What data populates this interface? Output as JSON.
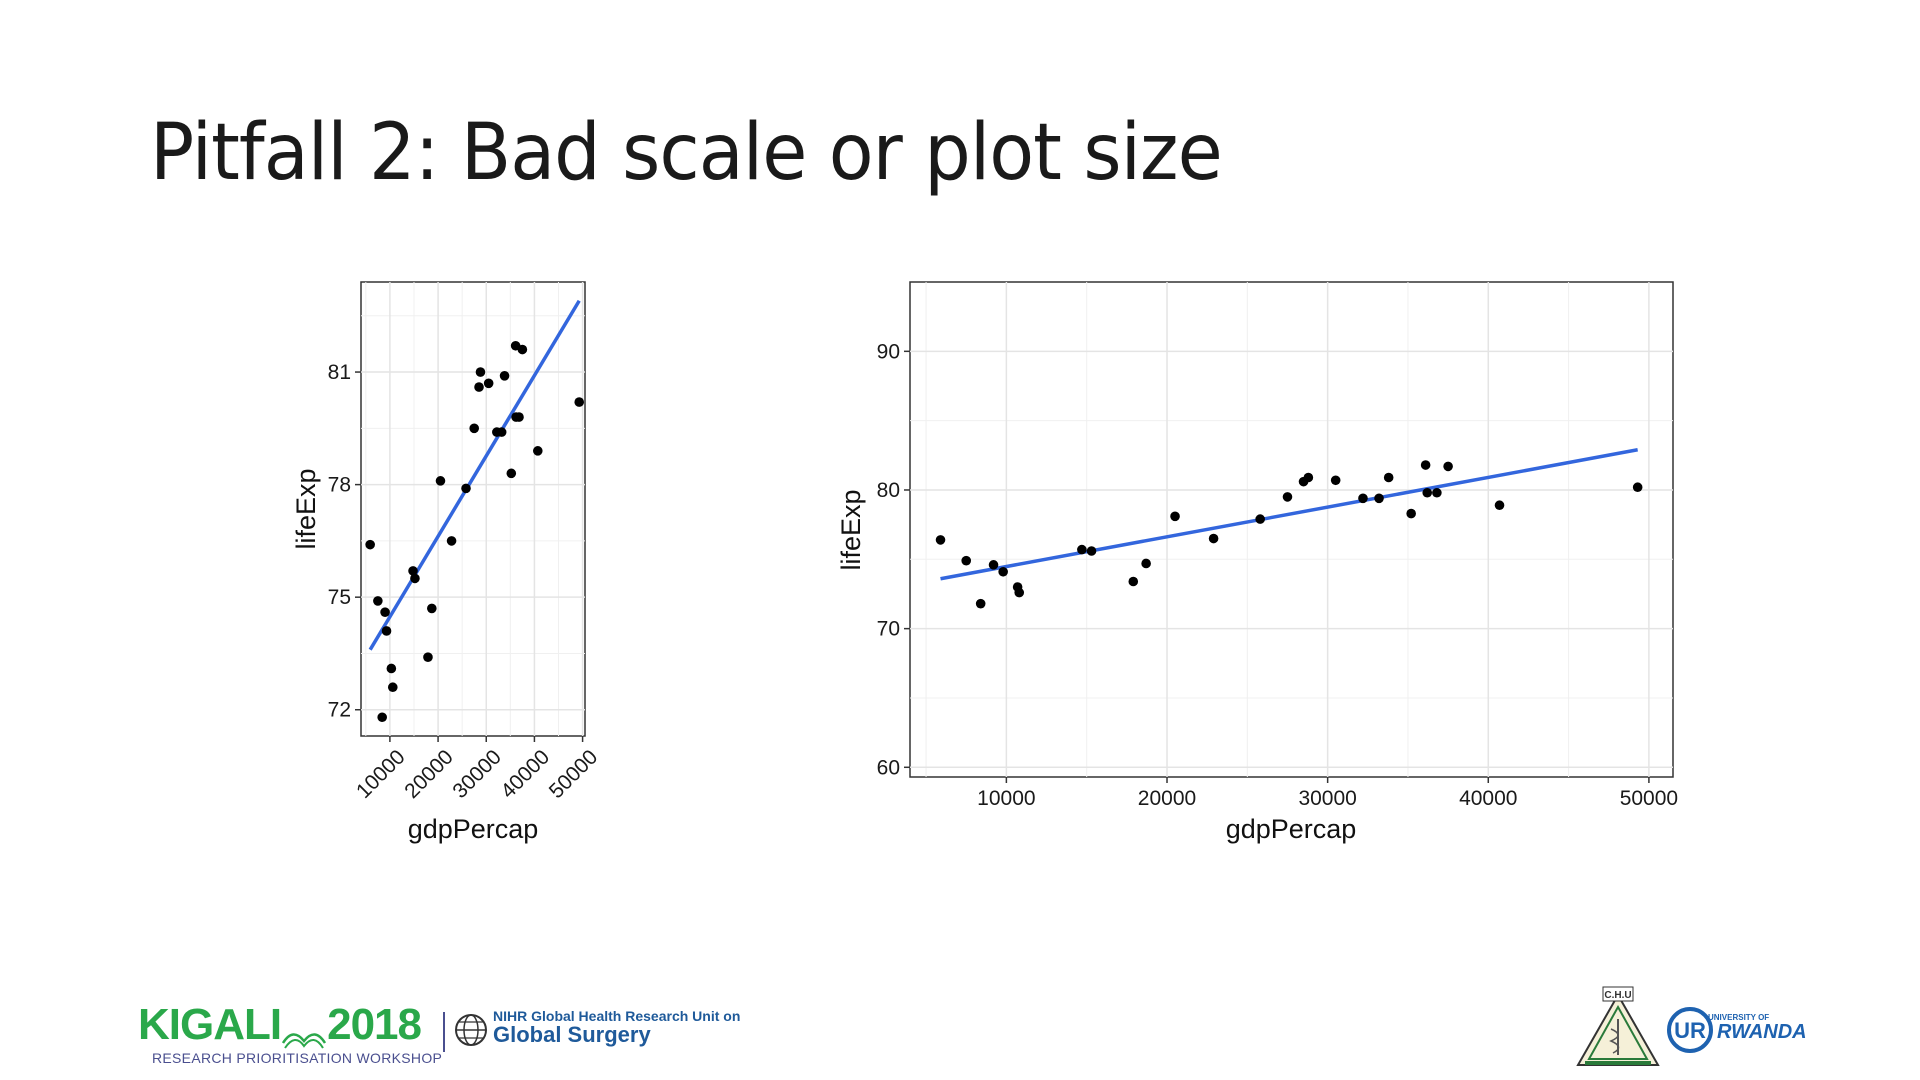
{
  "slide": {
    "title": "Pitfall 2: Bad scale or plot size"
  },
  "chart_data": [
    {
      "type": "scatter",
      "title": "",
      "xlabel": "gdpPercap",
      "ylabel": "lifeExp",
      "xlim": [
        4000,
        50500
      ],
      "ylim": [
        71.3,
        83.4
      ],
      "xticks": [
        10000,
        20000,
        30000,
        40000,
        50000
      ],
      "yticks": [
        72,
        75,
        78,
        81
      ],
      "xtick_rotation": 45,
      "grid": true,
      "legend": "none",
      "points": [
        [
          5900,
          76.4
        ],
        [
          7500,
          74.9
        ],
        [
          8400,
          71.8
        ],
        [
          9000,
          74.6
        ],
        [
          9300,
          74.1
        ],
        [
          10300,
          73.1
        ],
        [
          10600,
          72.6
        ],
        [
          14800,
          75.7
        ],
        [
          15200,
          75.5
        ],
        [
          17900,
          73.4
        ],
        [
          18700,
          74.7
        ],
        [
          20500,
          78.1
        ],
        [
          22800,
          76.5
        ],
        [
          25800,
          77.9
        ],
        [
          27500,
          79.5
        ],
        [
          28500,
          80.6
        ],
        [
          28800,
          81.0
        ],
        [
          30500,
          80.7
        ],
        [
          32200,
          79.4
        ],
        [
          33200,
          79.4
        ],
        [
          33800,
          80.9
        ],
        [
          35200,
          78.3
        ],
        [
          36100,
          81.7
        ],
        [
          36200,
          79.8
        ],
        [
          36800,
          79.8
        ],
        [
          37500,
          81.6
        ],
        [
          40700,
          78.9
        ],
        [
          49300,
          80.2
        ]
      ],
      "trend_line": {
        "x": [
          5900,
          49300
        ],
        "y": [
          73.6,
          82.9
        ],
        "color": "#3366dd"
      },
      "point_color": "#000000"
    },
    {
      "type": "scatter",
      "title": "",
      "xlabel": "gdpPercap",
      "ylabel": "lifeExp",
      "xlim": [
        4000,
        51500
      ],
      "ylim": [
        59.3,
        95
      ],
      "xticks": [
        10000,
        20000,
        30000,
        40000,
        50000
      ],
      "yticks": [
        60,
        70,
        80,
        90
      ],
      "xtick_rotation": 0,
      "grid": true,
      "legend": "none",
      "points": [
        [
          5900,
          76.4
        ],
        [
          7500,
          74.9
        ],
        [
          8400,
          71.8
        ],
        [
          9200,
          74.6
        ],
        [
          9800,
          74.1
        ],
        [
          10700,
          73.0
        ],
        [
          10800,
          72.6
        ],
        [
          14700,
          75.7
        ],
        [
          15300,
          75.6
        ],
        [
          17900,
          73.4
        ],
        [
          18700,
          74.7
        ],
        [
          20500,
          78.1
        ],
        [
          22900,
          76.5
        ],
        [
          25800,
          77.9
        ],
        [
          27500,
          79.5
        ],
        [
          28500,
          80.6
        ],
        [
          28800,
          80.9
        ],
        [
          30500,
          80.7
        ],
        [
          32200,
          79.4
        ],
        [
          33200,
          79.4
        ],
        [
          33800,
          80.9
        ],
        [
          35200,
          78.3
        ],
        [
          36100,
          81.8
        ],
        [
          36200,
          79.8
        ],
        [
          36800,
          79.8
        ],
        [
          37500,
          81.7
        ],
        [
          40700,
          78.9
        ],
        [
          49300,
          80.2
        ]
      ],
      "trend_line": {
        "x": [
          5900,
          49300
        ],
        "y": [
          73.6,
          82.9
        ],
        "color": "#3366dd"
      },
      "point_color": "#000000"
    }
  ],
  "footer": {
    "kigali_logo": "KIGALI",
    "kigali_year": "2018",
    "kigali_subtitle": "RESEARCH PRIORITISATION WORKSHOP",
    "nihr_line1": "NIHR Global Health Research Unit on",
    "nihr_line2": "Global Surgery",
    "chu_logo": "C.H.U",
    "ur_logo_small": "UNIVERSITY OF",
    "ur_logo_big": "RWANDA",
    "colors": {
      "kigali_green": "#2aa84a",
      "nihr_blue": "#1f5a9a",
      "ur_blue": "#1e62b0"
    }
  }
}
